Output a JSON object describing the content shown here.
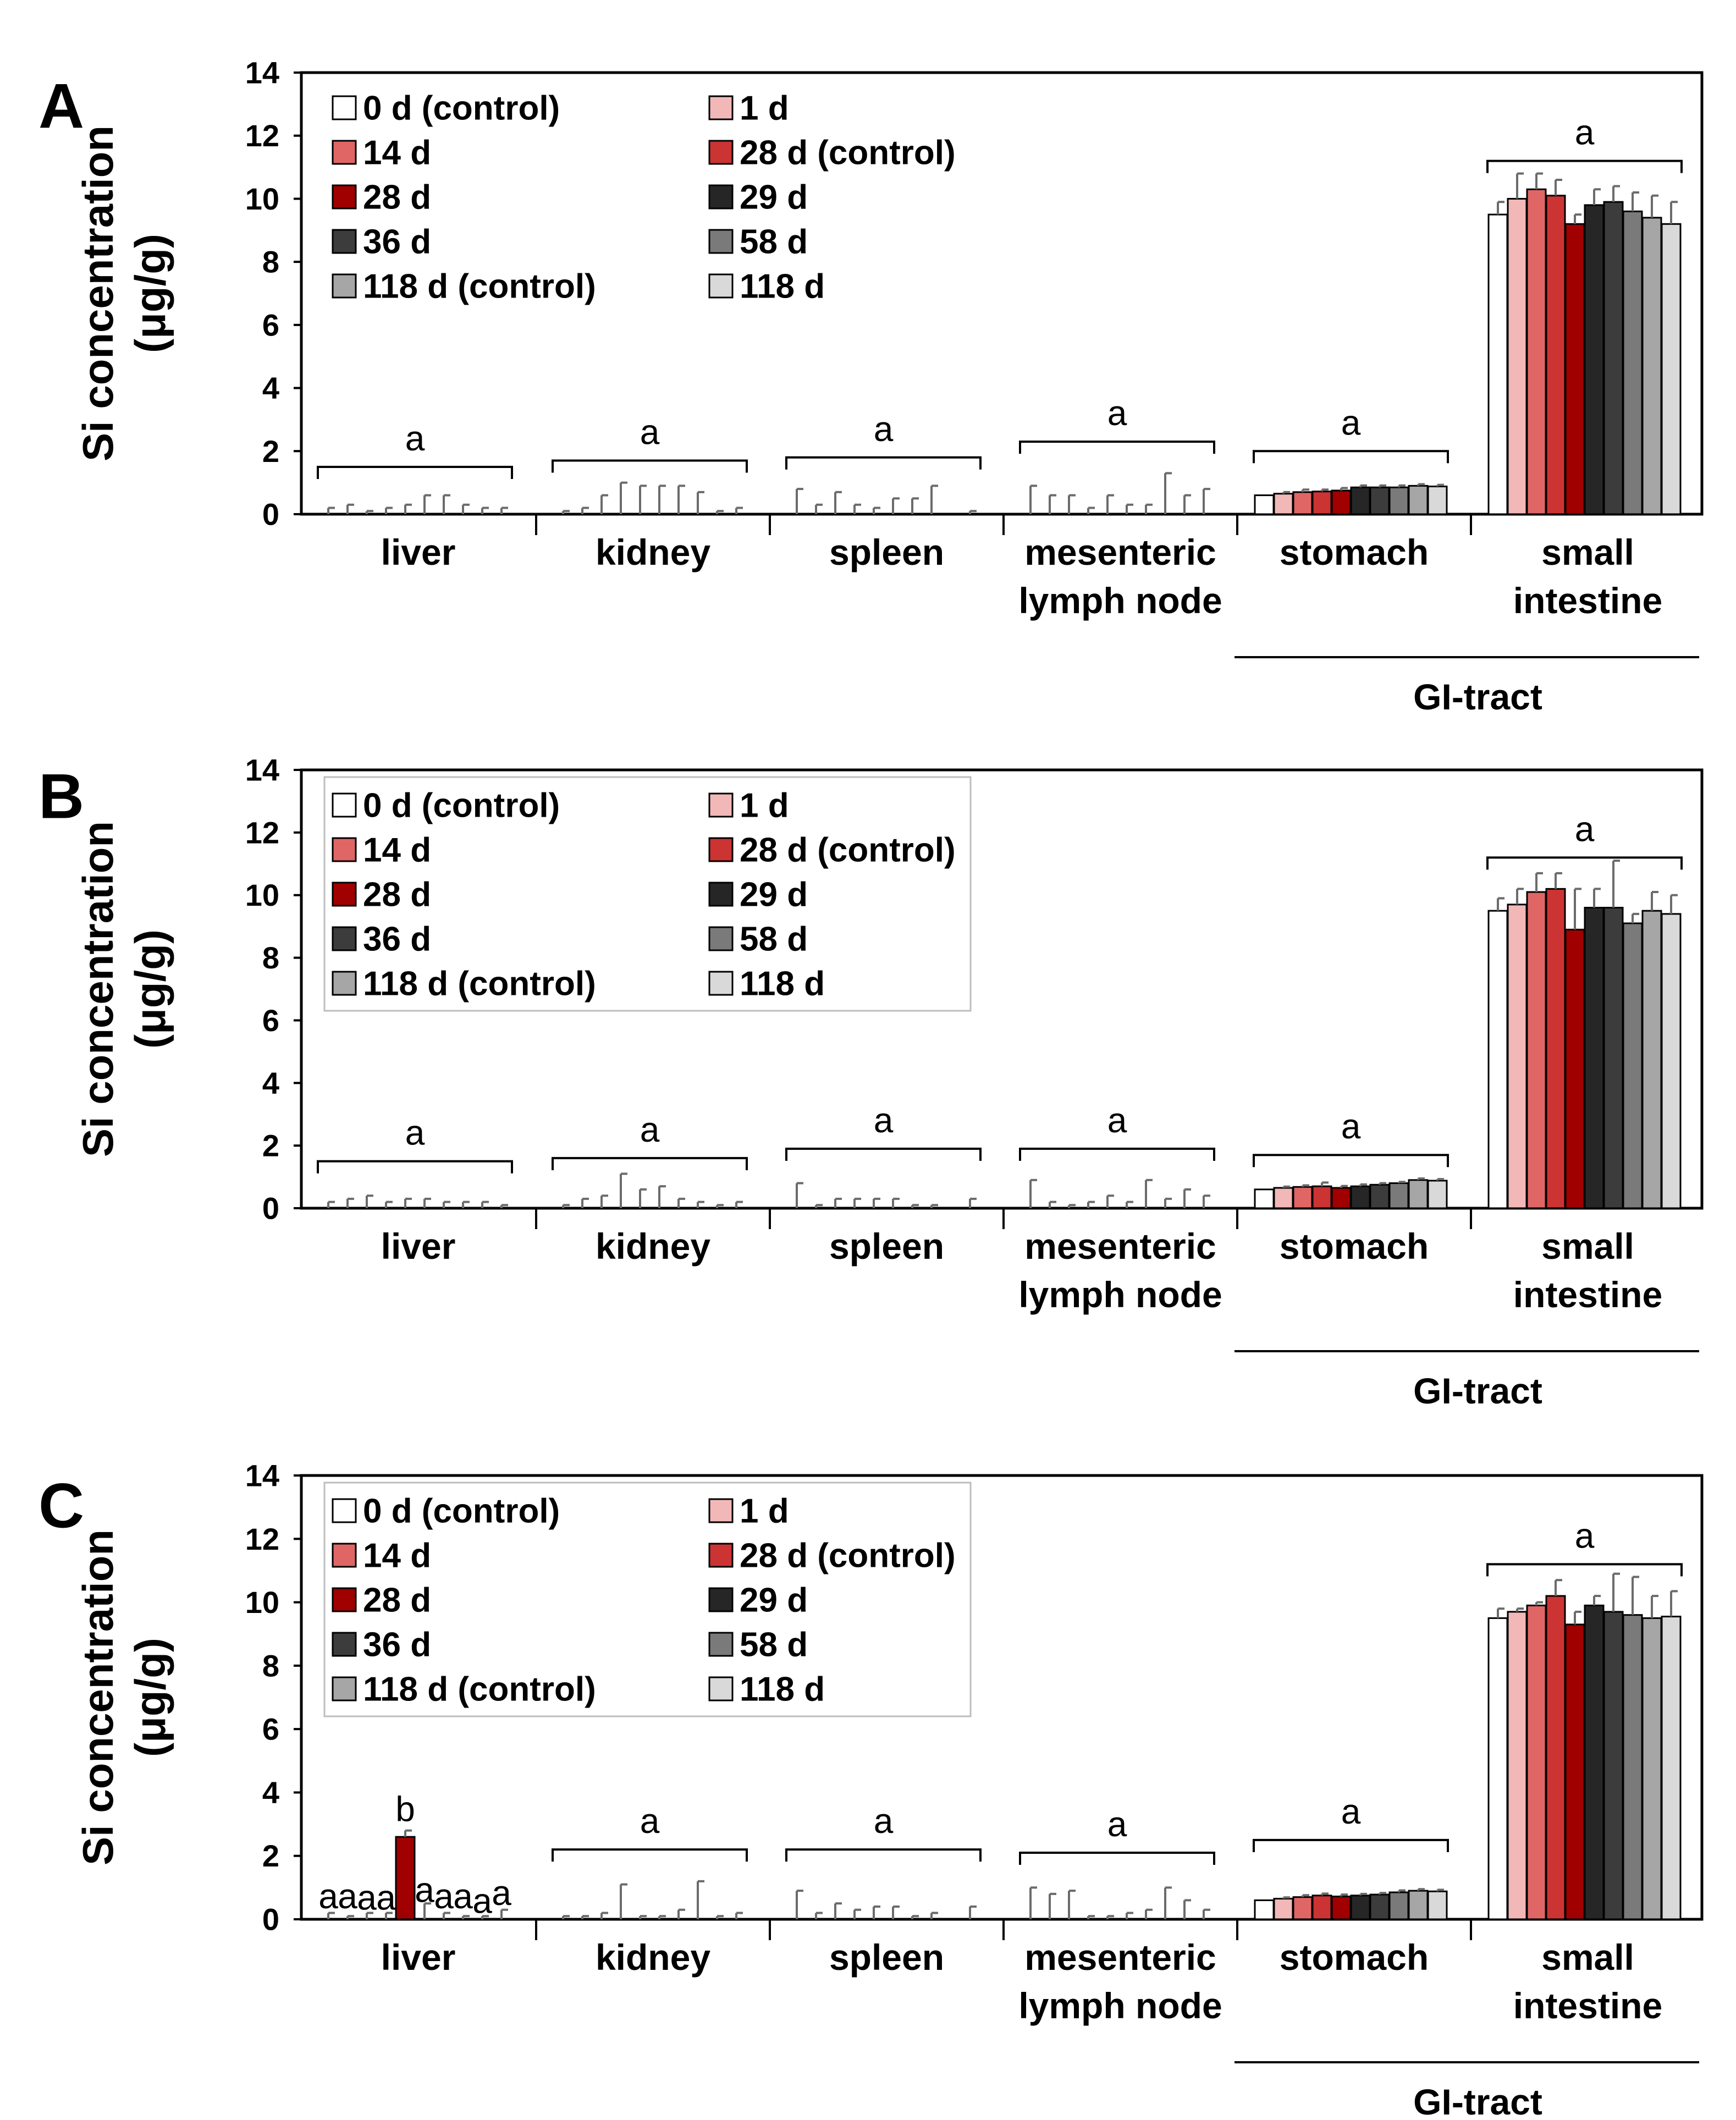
{
  "figure": {
    "ylabel_line1": "Si concentration",
    "ylabel_line2": "(μg/g)",
    "gi_label": "GI-tract",
    "y_ticks": [
      "0",
      "2",
      "4",
      "6",
      "8",
      "10",
      "12",
      "14"
    ],
    "categories": [
      {
        "name": "liver",
        "lines": [
          "liver"
        ]
      },
      {
        "name": "kidney",
        "lines": [
          "kidney"
        ]
      },
      {
        "name": "spleen",
        "lines": [
          "spleen"
        ]
      },
      {
        "name": "mesenteric lymph node",
        "lines": [
          "mesenteric",
          "lymph node"
        ]
      },
      {
        "name": "stomach",
        "lines": [
          "stomach"
        ]
      },
      {
        "name": "small intestine",
        "lines": [
          "small",
          "intestine"
        ]
      }
    ],
    "series": [
      {
        "name": "0 d (control)",
        "color": "#ffffff"
      },
      {
        "name": "1 d",
        "color": "#f2b8b8"
      },
      {
        "name": "14 d",
        "color": "#e06666"
      },
      {
        "name": "28 d (control)",
        "color": "#cc3333"
      },
      {
        "name": "28 d",
        "color": "#a00000"
      },
      {
        "name": "29 d",
        "color": "#262626"
      },
      {
        "name": "36 d",
        "color": "#3c3c3c"
      },
      {
        "name": "58 d",
        "color": "#7a7a7a"
      },
      {
        "name": "118 d (control)",
        "color": "#a6a6a6"
      },
      {
        "name": "118 d",
        "color": "#d9d9d9"
      }
    ]
  },
  "chart_data": [
    {
      "panel": "A",
      "type": "bar",
      "ylim": [
        0,
        14
      ],
      "legend_box": false,
      "values": [
        [
          0,
          0,
          0,
          0,
          0,
          0,
          0,
          0,
          0,
          0
        ],
        [
          0,
          0,
          0,
          0,
          0,
          0,
          0,
          0,
          0,
          0
        ],
        [
          0,
          0,
          0,
          0,
          0,
          0,
          0,
          0,
          0,
          0
        ],
        [
          0,
          0,
          0,
          0,
          0,
          0,
          0,
          0,
          0,
          0
        ],
        [
          0.6,
          0.65,
          0.7,
          0.72,
          0.75,
          0.85,
          0.85,
          0.85,
          0.9,
          0.88
        ],
        [
          9.5,
          10.0,
          10.3,
          10.1,
          9.2,
          9.8,
          9.9,
          9.6,
          9.4,
          9.2
        ]
      ],
      "errors": [
        [
          0.2,
          0.3,
          0.1,
          0.2,
          0.3,
          0.6,
          0.6,
          0.3,
          0.2,
          0.2
        ],
        [
          0.1,
          0.2,
          0.6,
          1.0,
          0.9,
          0.9,
          0.9,
          0.7,
          0.1,
          0.2
        ],
        [
          0.8,
          0.3,
          0.7,
          0.3,
          0.2,
          0.5,
          0.5,
          0.9,
          0,
          0.1
        ],
        [
          0.9,
          0.6,
          0.6,
          0.2,
          0.6,
          0.3,
          0.3,
          1.3,
          0.6,
          0.8
        ],
        [
          0,
          0.05,
          0.08,
          0.06,
          0.08,
          0.06,
          0.06,
          0.06,
          0.05,
          0.05
        ],
        [
          0.4,
          0.8,
          0.5,
          0.5,
          0.3,
          0.5,
          0.5,
          0.6,
          0.7,
          0.7
        ]
      ],
      "sig": [
        {
          "category": 0,
          "label": "a",
          "y": 1.5
        },
        {
          "category": 1,
          "label": "a",
          "y": 1.7
        },
        {
          "category": 2,
          "label": "a",
          "y": 1.8
        },
        {
          "category": 3,
          "label": "a",
          "y": 2.3
        },
        {
          "category": 4,
          "label": "a",
          "y": 2.0
        },
        {
          "category": 5,
          "label": "a",
          "y": 11.2
        }
      ]
    },
    {
      "panel": "B",
      "type": "bar",
      "ylim": [
        0,
        14
      ],
      "legend_box": true,
      "values": [
        [
          0,
          0,
          0,
          0,
          0,
          0,
          0,
          0,
          0,
          0
        ],
        [
          0,
          0,
          0,
          0,
          0,
          0,
          0,
          0,
          0,
          0
        ],
        [
          0,
          0,
          0,
          0,
          0,
          0,
          0,
          0,
          0,
          0
        ],
        [
          0,
          0,
          0,
          0,
          0,
          0,
          0,
          0,
          0,
          0
        ],
        [
          0.6,
          0.65,
          0.68,
          0.7,
          0.65,
          0.7,
          0.75,
          0.8,
          0.9,
          0.88
        ],
        [
          9.5,
          9.7,
          10.1,
          10.2,
          8.9,
          9.6,
          9.6,
          9.1,
          9.5,
          9.4
        ]
      ],
      "errors": [
        [
          0.2,
          0.3,
          0.4,
          0.2,
          0.3,
          0.3,
          0.2,
          0.2,
          0.2,
          0.1
        ],
        [
          0.1,
          0.3,
          0.4,
          1.1,
          0.6,
          0.7,
          0.3,
          0.2,
          0.1,
          0.2
        ],
        [
          0.8,
          0.1,
          0.3,
          0.3,
          0.3,
          0.3,
          0.1,
          0.1,
          0,
          0.3
        ],
        [
          0.9,
          0.2,
          0.1,
          0.2,
          0.4,
          0.2,
          0.9,
          0.3,
          0.6,
          0.4
        ],
        [
          0,
          0.04,
          0.05,
          0.12,
          0.06,
          0.06,
          0.05,
          0.04,
          0.05,
          0.05
        ],
        [
          0.4,
          0.5,
          0.6,
          0.5,
          1.3,
          0.6,
          1.5,
          0.3,
          0.6,
          0.6
        ]
      ],
      "sig": [
        {
          "category": 0,
          "label": "a",
          "y": 1.5
        },
        {
          "category": 1,
          "label": "a",
          "y": 1.6
        },
        {
          "category": 2,
          "label": "a",
          "y": 1.9
        },
        {
          "category": 3,
          "label": "a",
          "y": 1.9
        },
        {
          "category": 4,
          "label": "a",
          "y": 1.7
        },
        {
          "category": 5,
          "label": "a",
          "y": 11.2
        }
      ]
    },
    {
      "panel": "C",
      "type": "bar",
      "ylim": [
        0,
        14
      ],
      "legend_box": true,
      "values": [
        [
          0,
          0,
          0,
          0,
          2.6,
          0,
          0,
          0,
          0,
          0
        ],
        [
          0,
          0,
          0,
          0,
          0,
          0,
          0,
          0,
          0,
          0
        ],
        [
          0,
          0,
          0,
          0,
          0,
          0,
          0,
          0,
          0,
          0
        ],
        [
          0,
          0,
          0,
          0,
          0,
          0,
          0,
          0,
          0,
          0
        ],
        [
          0.6,
          0.65,
          0.7,
          0.75,
          0.72,
          0.75,
          0.78,
          0.85,
          0.9,
          0.88
        ],
        [
          9.5,
          9.7,
          9.9,
          10.2,
          9.3,
          9.9,
          9.7,
          9.6,
          9.5,
          9.55
        ]
      ],
      "errors": [
        [
          0.2,
          0.1,
          0.2,
          0.2,
          0.2,
          0.5,
          0.2,
          0.1,
          0.1,
          0.3
        ],
        [
          0.1,
          0.1,
          0.2,
          1.1,
          0.1,
          0.1,
          0.3,
          1.2,
          0.1,
          0.2
        ],
        [
          0.9,
          0.2,
          0.5,
          0.3,
          0.4,
          0.4,
          0.1,
          0.2,
          0,
          0.4
        ],
        [
          1.0,
          0.8,
          0.9,
          0.1,
          0.1,
          0.2,
          0.3,
          1.0,
          0.6,
          0.3
        ],
        [
          0,
          0.04,
          0.06,
          0.06,
          0.06,
          0.05,
          0.05,
          0.06,
          0.05,
          0.05
        ],
        [
          0.3,
          0.1,
          0.1,
          0.5,
          0.4,
          0.3,
          1.2,
          1.2,
          0.7,
          0.8
        ]
      ],
      "sig": [
        {
          "category": 0,
          "bar": 0,
          "label": "a",
          "y": 0.35
        },
        {
          "category": 0,
          "bar": 1,
          "label": "a",
          "y": 0.35
        },
        {
          "category": 0,
          "bar": 2,
          "label": "a",
          "y": 0.3
        },
        {
          "category": 0,
          "bar": 3,
          "label": "a",
          "y": 0.3
        },
        {
          "category": 0,
          "bar": 4,
          "label": "b",
          "y": 3.1
        },
        {
          "category": 0,
          "bar": 5,
          "label": "a",
          "y": 0.55
        },
        {
          "category": 0,
          "bar": 6,
          "label": "a",
          "y": 0.35
        },
        {
          "category": 0,
          "bar": 7,
          "label": "a",
          "y": 0.35
        },
        {
          "category": 0,
          "bar": 8,
          "label": "a",
          "y": 0.2
        },
        {
          "category": 0,
          "bar": 9,
          "label": "a",
          "y": 0.45
        },
        {
          "category": 1,
          "label": "a",
          "y": 2.2
        },
        {
          "category": 2,
          "label": "a",
          "y": 2.2
        },
        {
          "category": 3,
          "label": "a",
          "y": 2.1
        },
        {
          "category": 4,
          "label": "a",
          "y": 2.5
        },
        {
          "category": 5,
          "label": "a",
          "y": 11.2
        }
      ]
    }
  ]
}
